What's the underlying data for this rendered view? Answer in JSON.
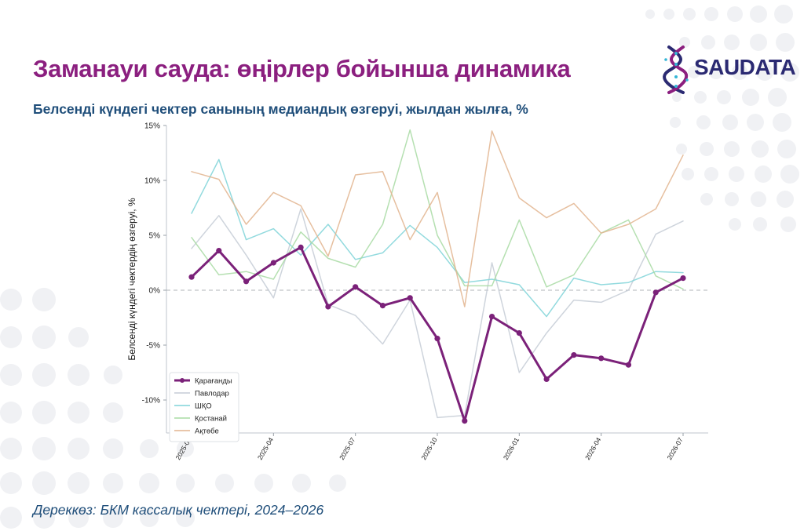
{
  "header": {
    "title": "Заманауи сауда: өңірлер бойынша динамика",
    "subtitle": "Белсенді күндегі чектер санының медиандық өзгеруі, жылдан жылға, %",
    "source": "Дереккөз: БКМ кассалық чектері, 2024–2026"
  },
  "logo": {
    "text": "SAUDATA",
    "icon": "dna-helix-icon"
  },
  "colors": {
    "title": "#8b1f7f",
    "subtitle": "#1f4e7a",
    "logo": "#2b2a72",
    "dots": "#f0f1f4"
  },
  "chart_data": {
    "type": "line",
    "ylabel": "Белсенді күндегі чектердің өзгеруі, %",
    "xlabel": "",
    "ylim": [
      -13,
      15
    ],
    "yticks": [
      15,
      10,
      5,
      0,
      -5,
      -10
    ],
    "ytick_labels": [
      "15%",
      "10%",
      "5%",
      "0%",
      "-5%",
      "-10%"
    ],
    "x": [
      "2025-01",
      "2025-02",
      "2025-03",
      "2025-04",
      "2025-05",
      "2025-06",
      "2025-07",
      "2025-08",
      "2025-09",
      "2025-10",
      "2025-11",
      "2025-12",
      "2026-01",
      "2026-02",
      "2026-03",
      "2026-04",
      "2026-05",
      "2026-06",
      "2026-07"
    ],
    "xtick_labels": [
      "2025-01",
      "2025-04",
      "2025-07",
      "2025-10",
      "2026-01",
      "2026-04",
      "2026-07"
    ],
    "zero_line": true,
    "grid": false,
    "legend_position": "bottom-left",
    "series": [
      {
        "name": "Қарағанды",
        "color": "#7b2179",
        "highlight": true,
        "values": [
          1.2,
          3.6,
          0.8,
          2.5,
          3.9,
          -1.5,
          0.3,
          -1.4,
          -0.7,
          -4.4,
          -11.9,
          -2.4,
          -3.9,
          -8.1,
          -5.9,
          -6.2,
          -6.8,
          -0.2,
          1.1
        ]
      },
      {
        "name": "Павлодар",
        "color": "#c5ccd6",
        "highlight": false,
        "values": [
          3.8,
          6.8,
          3.2,
          -0.7,
          7.4,
          -1.3,
          -2.3,
          -4.9,
          -0.9,
          -11.6,
          -11.4,
          2.5,
          -7.5,
          -3.9,
          -0.9,
          -1.1,
          0.0,
          5.1,
          6.3
        ]
      },
      {
        "name": "ШҚО",
        "color": "#7fd3d8",
        "highlight": false,
        "values": [
          7.0,
          11.9,
          4.6,
          5.6,
          3.2,
          6.0,
          2.8,
          3.4,
          5.9,
          3.9,
          0.7,
          1.0,
          0.5,
          -2.4,
          1.1,
          0.5,
          0.7,
          1.7,
          1.6
        ]
      },
      {
        "name": "Қостанай",
        "color": "#a8dba3",
        "highlight": false,
        "values": [
          4.8,
          1.4,
          1.7,
          1.0,
          5.3,
          2.9,
          2.1,
          6.0,
          14.6,
          5.0,
          0.4,
          0.4,
          6.4,
          0.3,
          1.4,
          5.2,
          6.4,
          1.3,
          0.1
        ]
      },
      {
        "name": "Ақтөбе",
        "color": "#e2b48e",
        "highlight": false,
        "values": [
          10.8,
          10.1,
          6.0,
          8.9,
          7.7,
          3.1,
          10.5,
          10.8,
          4.6,
          8.9,
          -1.5,
          14.5,
          8.4,
          6.6,
          7.9,
          5.2,
          6.0,
          7.4,
          12.3
        ]
      }
    ]
  }
}
